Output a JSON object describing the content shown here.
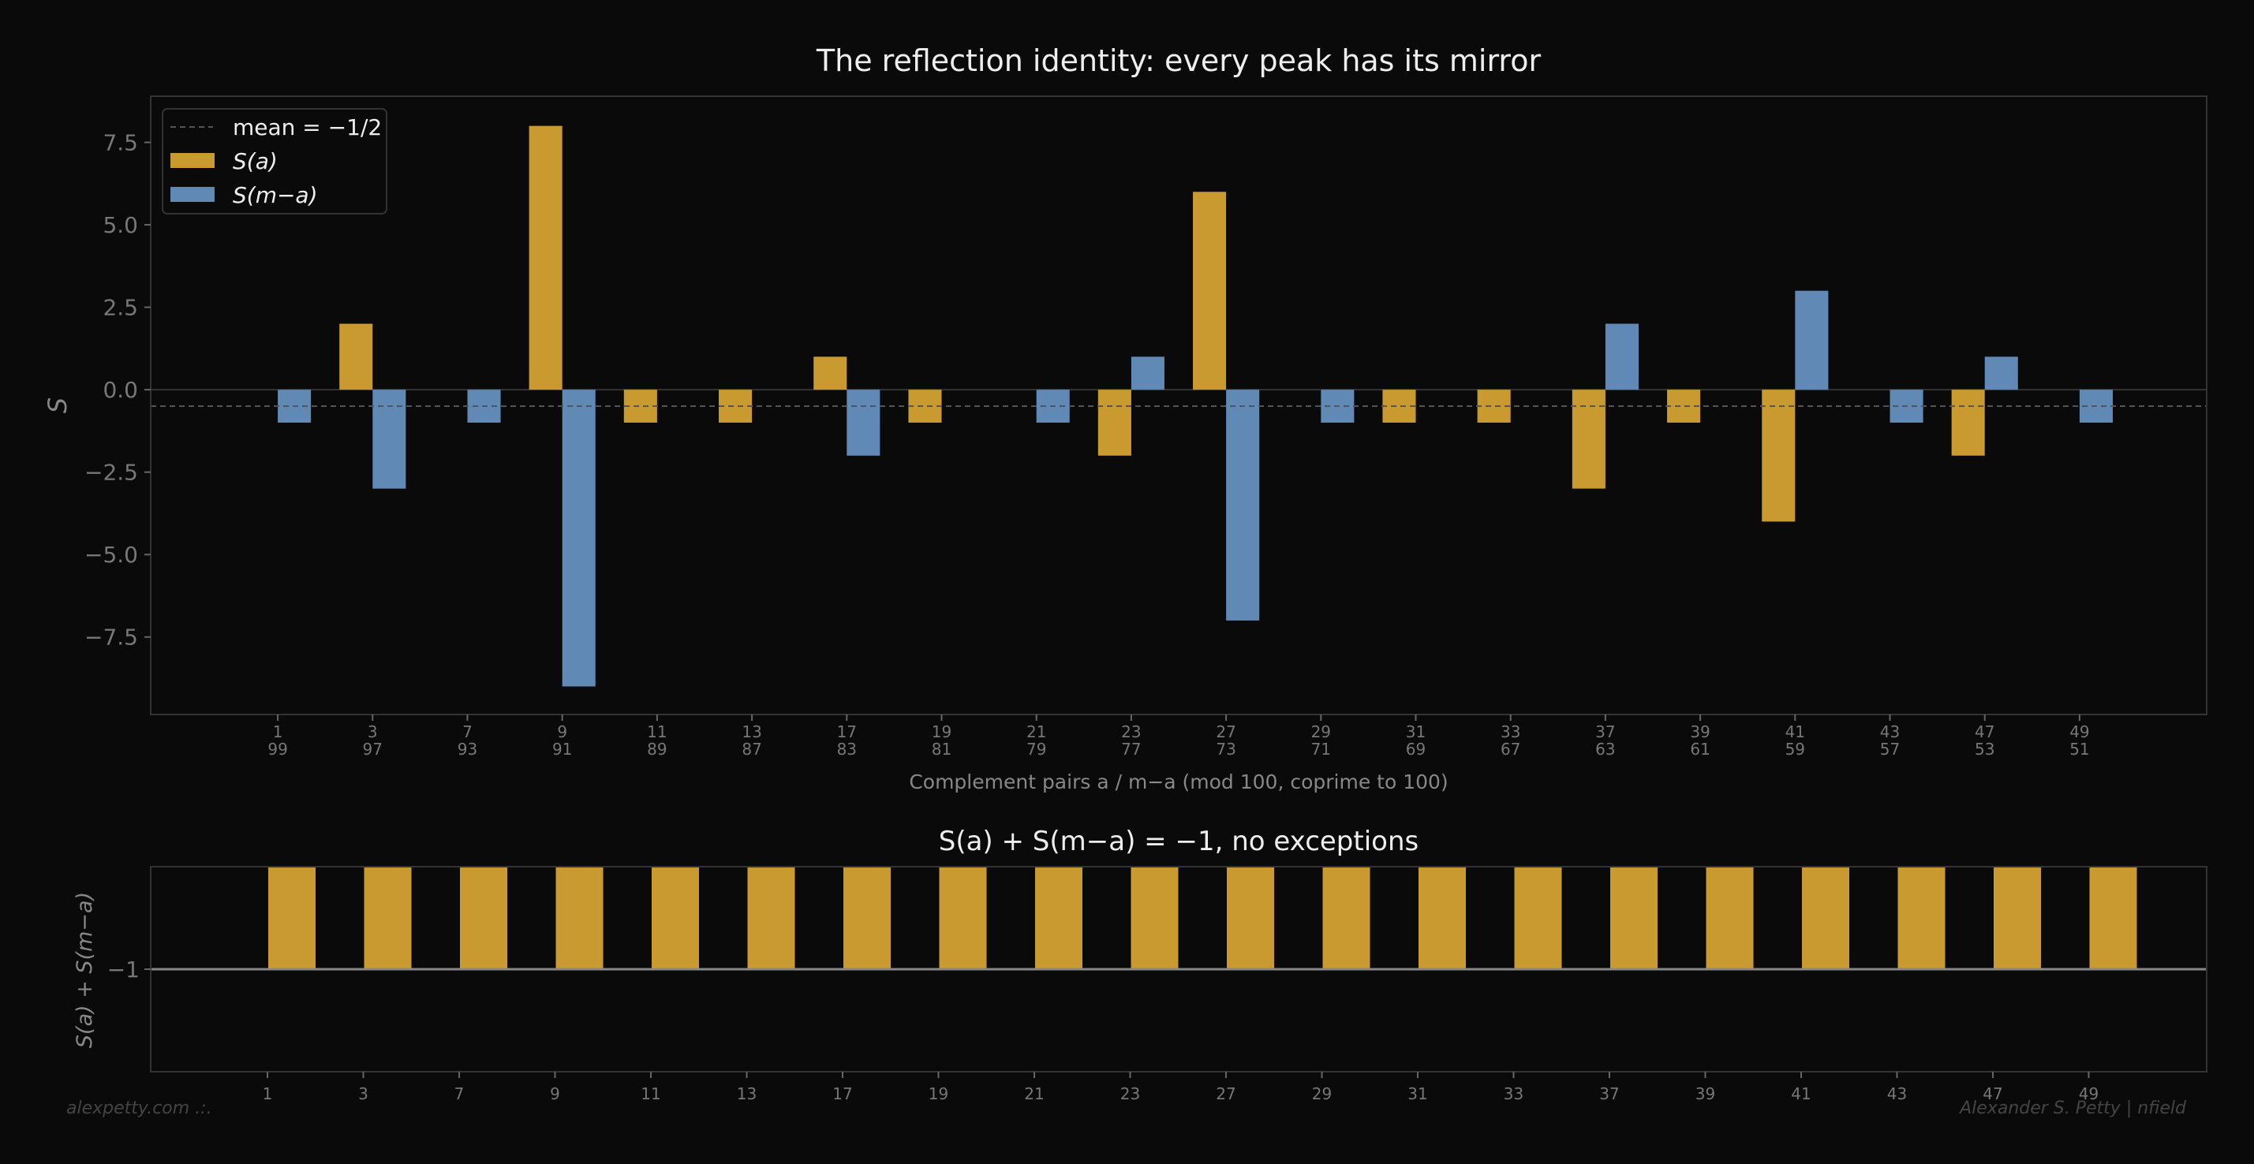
{
  "chart_data": [
    {
      "type": "bar",
      "title": "The reflection identity: every peak has its mirror",
      "xlabel": "Complement pairs a / m−a (mod 100, coprime to 100)",
      "ylabel": "S",
      "categories": [
        "1",
        "3",
        "7",
        "9",
        "11",
        "13",
        "17",
        "19",
        "21",
        "23",
        "27",
        "29",
        "31",
        "33",
        "37",
        "39",
        "41",
        "43",
        "47",
        "49"
      ],
      "complements": [
        "99",
        "97",
        "93",
        "91",
        "89",
        "87",
        "83",
        "81",
        "79",
        "77",
        "73",
        "71",
        "69",
        "67",
        "63",
        "61",
        "59",
        "57",
        "53",
        "51"
      ],
      "series": [
        {
          "name": "S(a)",
          "color": "#c89a30",
          "values": [
            0,
            2,
            0,
            8,
            -1,
            -1,
            1,
            -1,
            0,
            -2,
            6,
            0,
            -1,
            -1,
            -3,
            -1,
            -4,
            0,
            -2,
            0
          ]
        },
        {
          "name": "S(m−a)",
          "color": "#6089b5",
          "values": [
            -1,
            -3,
            -1,
            -9,
            0,
            0,
            -2,
            0,
            -1,
            1,
            -7,
            -1,
            0,
            0,
            2,
            0,
            3,
            -1,
            1,
            -1
          ]
        }
      ],
      "reference_line": {
        "label": "mean = −1/2",
        "value": -0.5,
        "style": "dashed",
        "color": "#555555"
      },
      "yticks": [
        "−7.5",
        "−5.0",
        "−2.5",
        "0.0",
        "2.5",
        "5.0",
        "7.5"
      ],
      "ytick_values": [
        -7.5,
        -5,
        -2.5,
        0,
        2.5,
        5,
        7.5
      ],
      "ylim": [
        -9.85,
        8.9
      ],
      "legend_placement": "top-left",
      "grid": false
    },
    {
      "type": "bar",
      "title": "S(a) + S(m−a) = −1, no exceptions",
      "ylabel": "S(a) + S(m−a)",
      "categories": [
        "1",
        "3",
        "7",
        "9",
        "11",
        "13",
        "17",
        "19",
        "21",
        "23",
        "27",
        "29",
        "31",
        "33",
        "37",
        "39",
        "41",
        "43",
        "47",
        "49"
      ],
      "values": [
        -1,
        -1,
        -1,
        -1,
        -1,
        -1,
        -1,
        -1,
        -1,
        -1,
        -1,
        -1,
        -1,
        -1,
        -1,
        -1,
        -1,
        -1,
        -1,
        -1
      ],
      "color": "#c89a30",
      "reference_line": {
        "value": -1,
        "color": "#888888"
      },
      "yticks": [
        "−1"
      ],
      "ytick_values": [
        -1
      ],
      "ylim": [
        -2,
        0
      ],
      "grid": false
    }
  ],
  "footer": {
    "left": "alexpetty.com  .:.",
    "right": "Alexander S. Petty  |  nfield"
  }
}
